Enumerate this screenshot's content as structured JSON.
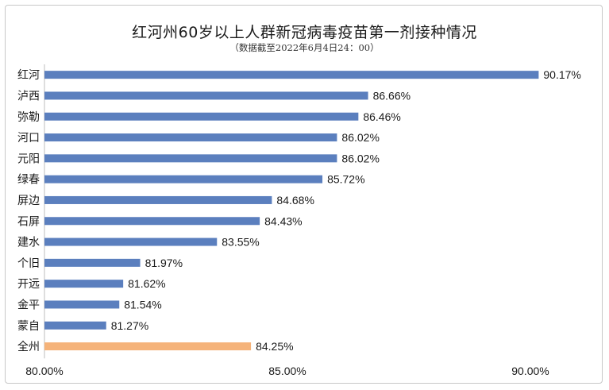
{
  "chart_data": {
    "type": "bar",
    "orientation": "horizontal",
    "title": "红河州60岁以上人群新冠病毒疫苗第一剂接种情况",
    "subtitle": "（数据截至2022年6月4日24：00）",
    "categories": [
      "红河",
      "泸西",
      "弥勒",
      "河口",
      "元阳",
      "绿春",
      "屏边",
      "石屏",
      "建水",
      "个旧",
      "开远",
      "金平",
      "蒙自",
      "全州"
    ],
    "values": [
      90.17,
      86.66,
      86.46,
      86.02,
      86.02,
      85.72,
      84.68,
      84.43,
      83.55,
      81.97,
      81.62,
      81.54,
      81.27,
      84.25
    ],
    "value_labels": [
      "90.17%",
      "86.66%",
      "86.46%",
      "86.02%",
      "86.02%",
      "85.72%",
      "84.68%",
      "84.43%",
      "83.55%",
      "81.97%",
      "81.62%",
      "81.54%",
      "81.27%",
      "84.25%"
    ],
    "xlim": [
      80,
      90
    ],
    "x_ticks": [
      "80.00%",
      "85.00%",
      "90.00%"
    ],
    "x_tick_values": [
      80,
      85,
      90
    ],
    "bar_color": "#5b7fbe",
    "highlight_color": "#f5b37a",
    "highlight_category": "全州",
    "grid": false,
    "legend": "none"
  }
}
